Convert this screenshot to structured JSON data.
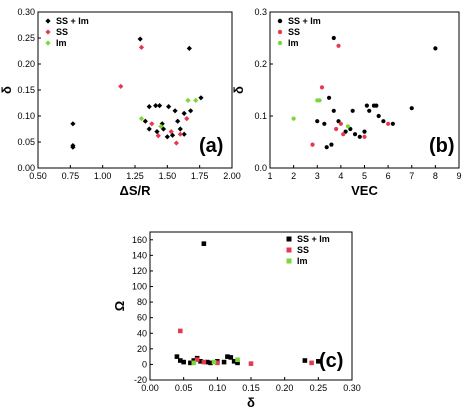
{
  "chart_data": [
    {
      "type": "scatter",
      "panel_label": "(a)",
      "xlabel": "ΔS/R",
      "ylabel": "δ",
      "xlim": [
        0.5,
        2.0
      ],
      "ylim": [
        0.0,
        0.3
      ],
      "xticks": [
        "0.50",
        "0.75",
        "1.00",
        "1.25",
        "1.50",
        "1.75",
        "2.00"
      ],
      "yticks": [
        "0.00",
        "0.05",
        "0.10",
        "0.15",
        "0.20",
        "0.25",
        "0.30"
      ],
      "legend_position": "top-left",
      "grid": false,
      "series": [
        {
          "name": "SS + Im",
          "color": "#000000",
          "marker": "diamond",
          "points": [
            [
              0.77,
              0.085
            ],
            [
              0.77,
              0.043
            ],
            [
              0.77,
              0.04
            ],
            [
              1.29,
              0.248
            ],
            [
              1.67,
              0.23
            ],
            [
              1.33,
              0.09
            ],
            [
              1.36,
              0.118
            ],
            [
              1.41,
              0.12
            ],
            [
              1.44,
              0.12
            ],
            [
              1.51,
              0.118
            ],
            [
              1.56,
              0.11
            ],
            [
              1.58,
              0.09
            ],
            [
              1.63,
              0.105
            ],
            [
              1.68,
              0.11
            ],
            [
              1.76,
              0.135
            ],
            [
              1.36,
              0.075
            ],
            [
              1.42,
              0.07
            ],
            [
              1.47,
              0.075
            ],
            [
              1.54,
              0.063
            ],
            [
              1.6,
              0.075
            ],
            [
              1.63,
              0.065
            ],
            [
              1.46,
              0.085
            ],
            [
              1.5,
              0.06
            ]
          ]
        },
        {
          "name": "SS",
          "color": "#e8384f",
          "marker": "diamond",
          "points": [
            [
              1.14,
              0.157
            ],
            [
              1.3,
              0.232
            ],
            [
              1.38,
              0.085
            ],
            [
              1.43,
              0.062
            ],
            [
              1.57,
              0.048
            ],
            [
              1.6,
              0.065
            ],
            [
              1.65,
              0.095
            ],
            [
              1.53,
              0.07
            ]
          ]
        },
        {
          "name": "Im",
          "color": "#7cd63a",
          "marker": "diamond",
          "points": [
            [
              1.3,
              0.095
            ],
            [
              1.45,
              0.08
            ],
            [
              1.66,
              0.13
            ],
            [
              1.72,
              0.13
            ]
          ]
        }
      ]
    },
    {
      "type": "scatter",
      "panel_label": "(b)",
      "xlabel": "VEC",
      "ylabel": "δ",
      "xlim": [
        1,
        9
      ],
      "ylim": [
        0.0,
        0.3
      ],
      "xticks": [
        "1",
        "2",
        "3",
        "4",
        "5",
        "6",
        "7",
        "8",
        "9"
      ],
      "yticks": [
        "0.0",
        "0.1",
        "0.2",
        "0.3"
      ],
      "legend_position": "top-left",
      "grid": false,
      "series": [
        {
          "name": "SS + Im",
          "color": "#000000",
          "marker": "circle",
          "points": [
            [
              3.7,
              0.25
            ],
            [
              8.0,
              0.23
            ],
            [
              3.5,
              0.135
            ],
            [
              3.0,
              0.09
            ],
            [
              3.3,
              0.085
            ],
            [
              3.4,
              0.04
            ],
            [
              3.6,
              0.045
            ],
            [
              3.7,
              0.11
            ],
            [
              3.9,
              0.09
            ],
            [
              4.2,
              0.07
            ],
            [
              4.4,
              0.075
            ],
            [
              4.6,
              0.065
            ],
            [
              4.8,
              0.06
            ],
            [
              5.0,
              0.07
            ],
            [
              5.2,
              0.11
            ],
            [
              5.4,
              0.12
            ],
            [
              5.5,
              0.12
            ],
            [
              5.6,
              0.1
            ],
            [
              5.8,
              0.09
            ],
            [
              6.2,
              0.085
            ],
            [
              7.0,
              0.115
            ],
            [
              4.5,
              0.11
            ],
            [
              5.1,
              0.12
            ]
          ]
        },
        {
          "name": "SS",
          "color": "#e8384f",
          "marker": "circle",
          "points": [
            [
              3.2,
              0.155
            ],
            [
              3.9,
              0.235
            ],
            [
              2.8,
              0.045
            ],
            [
              3.8,
              0.075
            ],
            [
              4.0,
              0.085
            ],
            [
              4.1,
              0.065
            ],
            [
              5.0,
              0.06
            ],
            [
              6.0,
              0.085
            ]
          ]
        },
        {
          "name": "Im",
          "color": "#7cd63a",
          "marker": "circle",
          "points": [
            [
              2.0,
              0.095
            ],
            [
              3.0,
              0.13
            ],
            [
              3.1,
              0.13
            ],
            [
              4.3,
              0.08
            ]
          ]
        }
      ]
    },
    {
      "type": "scatter",
      "panel_label": "(c)",
      "xlabel": "δ",
      "ylabel": "Ω",
      "xlim": [
        0.0,
        0.3
      ],
      "ylim": [
        -20,
        170
      ],
      "xticks": [
        "0.00",
        "0.05",
        "0.10",
        "0.15",
        "0.20",
        "0.25",
        "0.30"
      ],
      "yticks": [
        "-20",
        "0",
        "20",
        "40",
        "60",
        "80",
        "100",
        "120",
        "140",
        "160"
      ],
      "legend_position": "top-right",
      "grid": false,
      "series": [
        {
          "name": "SS + Im",
          "color": "#000000",
          "marker": "square",
          "points": [
            [
              0.04,
              10
            ],
            [
              0.045,
              5
            ],
            [
              0.05,
              3
            ],
            [
              0.06,
              2
            ],
            [
              0.065,
              5
            ],
            [
              0.07,
              8
            ],
            [
              0.075,
              4
            ],
            [
              0.08,
              155
            ],
            [
              0.085,
              3
            ],
            [
              0.09,
              2
            ],
            [
              0.1,
              4
            ],
            [
              0.11,
              3
            ],
            [
              0.115,
              10
            ],
            [
              0.12,
              9
            ],
            [
              0.125,
              4
            ],
            [
              0.13,
              2
            ],
            [
              0.23,
              5
            ],
            [
              0.25,
              4
            ]
          ]
        },
        {
          "name": "SS",
          "color": "#e8384f",
          "marker": "square",
          "points": [
            [
              0.045,
              43
            ],
            [
              0.07,
              6
            ],
            [
              0.08,
              3
            ],
            [
              0.1,
              2
            ],
            [
              0.15,
              1
            ],
            [
              0.24,
              2
            ]
          ]
        },
        {
          "name": "Im",
          "color": "#7cd63a",
          "marker": "square",
          "points": [
            [
              0.065,
              2
            ],
            [
              0.095,
              3
            ],
            [
              0.13,
              6
            ]
          ]
        }
      ]
    }
  ]
}
